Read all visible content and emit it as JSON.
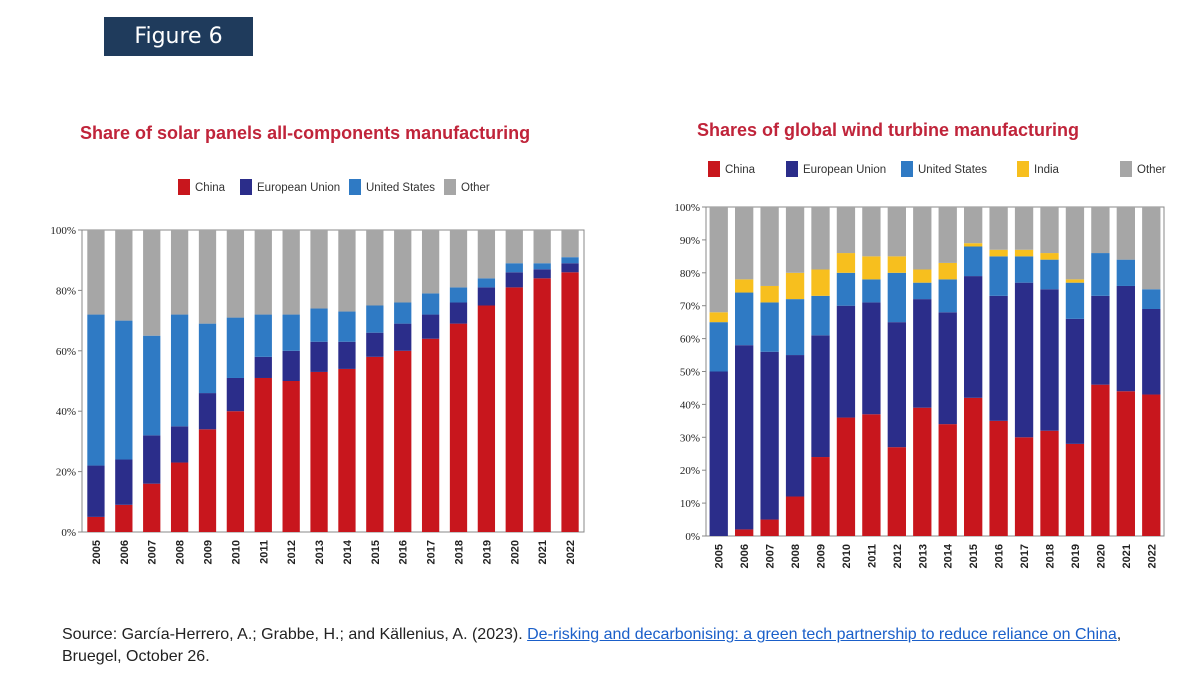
{
  "figure_label": "Figure 6",
  "source": {
    "prefix": "Source: García-Herrero, A.; Grabbe, H.; and Källenius, A. (2023). ",
    "link_text": "De-risking and decarbonising: a green tech partnership to reduce reliance on China",
    "suffix": ", Bruegel, October 26."
  },
  "colors": {
    "China": "#c8161d",
    "European Union": "#2b2d8a",
    "United States": "#2f7ac4",
    "India": "#f7bf1e",
    "Other": "#a6a6a6"
  },
  "chart_data": [
    {
      "type": "bar",
      "stacked": true,
      "title": "Share of solar panels all-components manufacturing",
      "legend": [
        "China",
        "European Union",
        "United States",
        "Other"
      ],
      "categories": [
        "2005",
        "2006",
        "2007",
        "2008",
        "2009",
        "2010",
        "2011",
        "2012",
        "2013",
        "2014",
        "2015",
        "2016",
        "2017",
        "2018",
        "2019",
        "2020",
        "2021",
        "2022"
      ],
      "y_ticks": [
        "0%",
        "20%",
        "40%",
        "60%",
        "80%",
        "100%"
      ],
      "ylim": [
        0,
        100
      ],
      "series": [
        {
          "name": "China",
          "values": [
            5,
            9,
            16,
            23,
            34,
            40,
            51,
            50,
            53,
            54,
            58,
            60,
            64,
            69,
            75,
            81,
            84,
            86
          ]
        },
        {
          "name": "European Union",
          "values": [
            17,
            15,
            16,
            12,
            12,
            11,
            7,
            10,
            10,
            9,
            8,
            9,
            8,
            7,
            6,
            5,
            3,
            3
          ]
        },
        {
          "name": "United States",
          "values": [
            50,
            46,
            33,
            37,
            23,
            20,
            14,
            12,
            11,
            10,
            9,
            7,
            7,
            5,
            3,
            3,
            2,
            2
          ]
        },
        {
          "name": "Other",
          "values": [
            28,
            30,
            35,
            28,
            31,
            29,
            28,
            28,
            26,
            27,
            25,
            24,
            21,
            19,
            16,
            11,
            11,
            9
          ]
        }
      ]
    },
    {
      "type": "bar",
      "stacked": true,
      "title": "Shares of global wind turbine manufacturing",
      "legend": [
        "China",
        "European Union",
        "United States",
        "India",
        "Other"
      ],
      "categories": [
        "2005",
        "2006",
        "2007",
        "2008",
        "2009",
        "2010",
        "2011",
        "2012",
        "2013",
        "2014",
        "2015",
        "2016",
        "2017",
        "2018",
        "2019",
        "2020",
        "2021",
        "2022"
      ],
      "y_ticks": [
        "0%",
        "10%",
        "20%",
        "30%",
        "40%",
        "50%",
        "60%",
        "70%",
        "80%",
        "90%",
        "100%"
      ],
      "ylim": [
        0,
        100
      ],
      "series": [
        {
          "name": "China",
          "values": [
            0,
            2,
            5,
            12,
            24,
            36,
            37,
            27,
            39,
            34,
            42,
            35,
            30,
            32,
            28,
            46,
            44,
            43
          ]
        },
        {
          "name": "European Union",
          "values": [
            50,
            56,
            51,
            43,
            37,
            34,
            34,
            38,
            33,
            34,
            37,
            38,
            47,
            43,
            38,
            27,
            32,
            26
          ]
        },
        {
          "name": "United States",
          "values": [
            15,
            16,
            15,
            17,
            12,
            10,
            7,
            15,
            5,
            10,
            9,
            12,
            8,
            9,
            11,
            13,
            8,
            6
          ]
        },
        {
          "name": "India",
          "values": [
            3,
            4,
            5,
            8,
            8,
            6,
            7,
            5,
            4,
            5,
            1,
            2,
            2,
            2,
            1,
            0,
            0,
            0
          ]
        },
        {
          "name": "Other",
          "values": [
            32,
            22,
            24,
            20,
            19,
            14,
            15,
            15,
            19,
            17,
            11,
            13,
            13,
            14,
            22,
            14,
            16,
            25
          ]
        }
      ]
    }
  ]
}
